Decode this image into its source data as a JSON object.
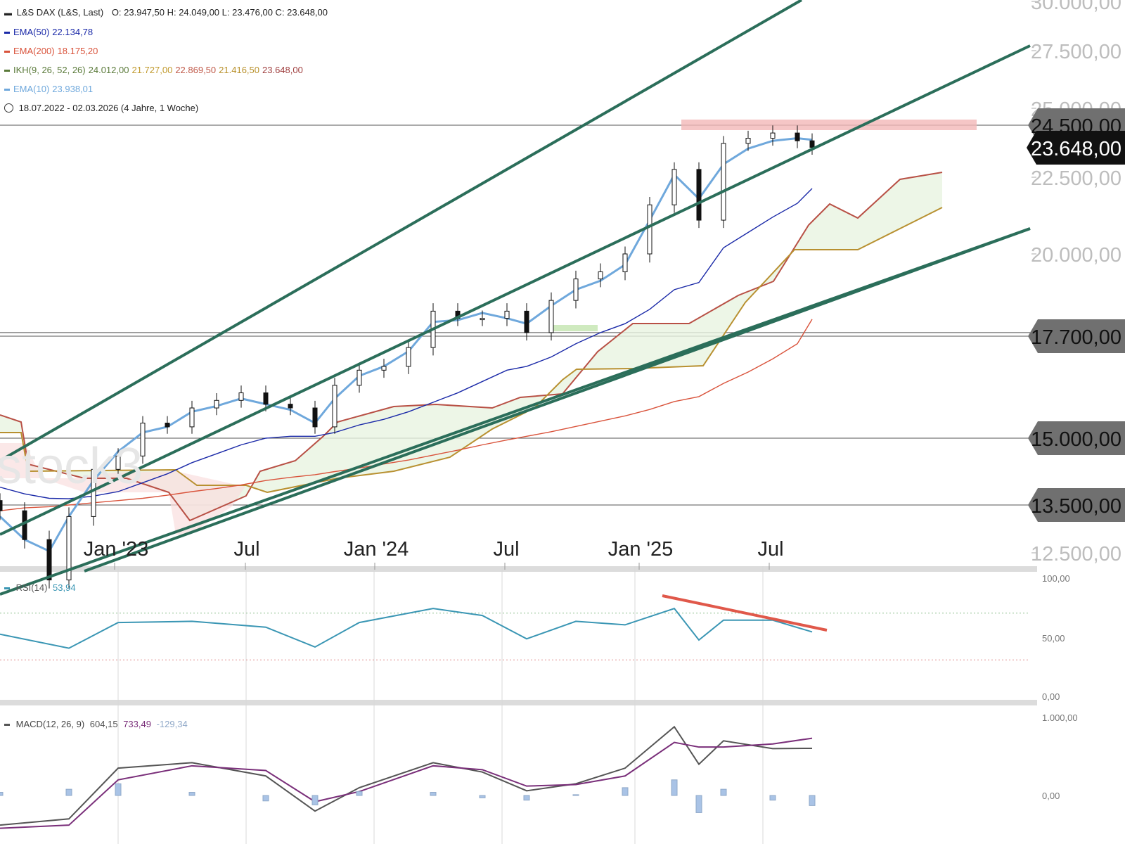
{
  "header": {
    "title": "L&S DAX (L&S, Last)",
    "ohlc": "O: 23.947,50   H: 24.049,00   L: 23.476,00   C: 23.648,00",
    "indicators": [
      {
        "label": "EMA(50)",
        "values": [
          "22.134,78"
        ],
        "color": "#1b2aa8"
      },
      {
        "label": "EMA(200)",
        "values": [
          "18.175,20"
        ],
        "color": "#d9533b"
      },
      {
        "label": "IKH(9, 26, 52, 26)",
        "values": [
          "24.012,00",
          "21.727,00",
          "22.869,50",
          "21.416,50",
          "23.648,00"
        ],
        "value_colors": [
          "#5a7a3a",
          "#c19a2e",
          "#c05a4a",
          "#b8902a",
          "#a04040"
        ],
        "color": "#5a7a3a"
      },
      {
        "label": "EMA(10)",
        "values": [
          "23.938,01"
        ],
        "color": "#6fa8dc"
      }
    ],
    "period": "18.07.2022 - 02.03.2026  (4 Jahre, 1 Woche)"
  },
  "watermark": "stock3",
  "price_labels": [
    {
      "text": "30.000,00",
      "style": "plain"
    },
    {
      "text": "27.500,00",
      "style": "plain"
    },
    {
      "text": "25.000,00",
      "style": "plain"
    },
    {
      "text": "24.500,00",
      "style": "tag"
    },
    {
      "text": "23.648,00",
      "style": "current"
    },
    {
      "text": "22.500,00",
      "style": "plain"
    },
    {
      "text": "20.000,00",
      "style": "plain"
    },
    {
      "text": "17.700,00",
      "style": "tag"
    },
    {
      "text": "15.000,00",
      "style": "tag"
    },
    {
      "text": "13.500,00",
      "style": "tag"
    },
    {
      "text": "12.500,00",
      "style": "plain"
    }
  ],
  "time_labels": [
    "Jan '23",
    "Jul",
    "Jan '24",
    "Jul",
    "Jan '25",
    "Jul"
  ],
  "rsi_panel": {
    "label": "RSI(14)",
    "value": "53,94",
    "ticks": [
      "100,00",
      "50,00",
      "0,00"
    ]
  },
  "macd_panel": {
    "label": "MACD(12, 26, 9)",
    "values": [
      "604,15",
      "733,49",
      "-129,34"
    ],
    "value_colors": [
      "#555555",
      "#7a2f7a",
      "#8fa8c8"
    ],
    "ticks": [
      "1.000,00",
      "0,00"
    ]
  },
  "colors": {
    "ema10": "#6fa8dc",
    "ema50": "#1b2aa8",
    "ema200": "#d9533b",
    "channel": "#2b6e5a",
    "resistance": "#f2b8b8",
    "divergence": "#e0584a"
  },
  "chart_data": [
    {
      "type": "candlestick",
      "title": "L&S DAX (L&S, Last)",
      "x": [
        "2022-07-18",
        "2022-08-22",
        "2022-09-26",
        "2022-10-24",
        "2022-11-28",
        "2023-01-02",
        "2023-02-06",
        "2023-03-13",
        "2023-04-17",
        "2023-05-22",
        "2023-06-26",
        "2023-07-31",
        "2023-09-04",
        "2023-10-09",
        "2023-11-06",
        "2023-12-11",
        "2024-01-15",
        "2024-02-19",
        "2024-03-25",
        "2024-04-29",
        "2024-06-03",
        "2024-07-08",
        "2024-08-05",
        "2024-09-09",
        "2024-10-14",
        "2024-11-18",
        "2024-12-23",
        "2025-01-27",
        "2025-03-03",
        "2025-04-07",
        "2025-05-12",
        "2025-06-16",
        "2025-07-21",
        "2025-08-25",
        "2025-09-15"
      ],
      "close": [
        13400,
        12900,
        12200,
        13300,
        14300,
        14600,
        15400,
        15300,
        15800,
        16000,
        16200,
        15900,
        15800,
        15300,
        16400,
        16800,
        16900,
        17400,
        18400,
        18200,
        18200,
        18400,
        17800,
        18700,
        19300,
        19500,
        20000,
        21600,
        22800,
        21100,
        23800,
        24000,
        24200,
        23900,
        23648
      ],
      "ylim": [
        12500,
        30000
      ],
      "series": [
        {
          "name": "EMA(50)",
          "values": [
            13900,
            13750,
            13650,
            13640,
            13700,
            13800,
            14000,
            14200,
            14450,
            14650,
            14850,
            15000,
            15050,
            15050,
            15150,
            15350,
            15500,
            15700,
            15950,
            16200,
            16500,
            16800,
            16900,
            17150,
            17500,
            17800,
            18050,
            18450,
            19000,
            19200,
            20200,
            20700,
            21200,
            21650,
            22134
          ]
        },
        {
          "name": "EMA(200)",
          "values": [
            13400,
            13450,
            13470,
            13500,
            13550,
            13600,
            13650,
            13720,
            13800,
            13870,
            13950,
            14050,
            14120,
            14180,
            14250,
            14330,
            14420,
            14510,
            14620,
            14730,
            14850,
            14960,
            15050,
            15170,
            15310,
            15450,
            15590,
            15760,
            15970,
            16100,
            16450,
            16750,
            17100,
            17500,
            18175
          ]
        },
        {
          "name": "EMA(10)",
          "values": [
            13300,
            12900,
            12700,
            13300,
            14050,
            14700,
            15150,
            15300,
            15700,
            15850,
            16050,
            15900,
            15750,
            15400,
            16050,
            16650,
            16900,
            17300,
            18100,
            18150,
            18350,
            18200,
            18050,
            18550,
            19000,
            19250,
            19700,
            21100,
            22600,
            21800,
            23000,
            23600,
            23900,
            24000,
            23938
          ]
        }
      ]
    },
    {
      "type": "line",
      "title": "RSI(14)",
      "x": [
        "2022-07-18",
        "2022-10-24",
        "2023-01-02",
        "2023-04-17",
        "2023-07-31",
        "2023-10-09",
        "2023-12-11",
        "2024-03-25",
        "2024-06-03",
        "2024-08-05",
        "2024-10-14",
        "2024-12-23",
        "2025-03-03",
        "2025-04-07",
        "2025-05-12",
        "2025-07-21",
        "2025-09-15"
      ],
      "values": [
        52,
        40,
        62,
        63,
        58,
        41,
        62,
        74,
        68,
        48,
        63,
        60,
        74,
        47,
        64,
        64,
        53.94
      ],
      "ylim": [
        0,
        100
      ]
    },
    {
      "type": "line",
      "title": "MACD(12, 26, 9)",
      "x": [
        "2022-07-18",
        "2022-10-24",
        "2023-01-02",
        "2023-04-17",
        "2023-07-31",
        "2023-10-09",
        "2023-12-11",
        "2024-03-25",
        "2024-06-03",
        "2024-08-05",
        "2024-10-14",
        "2024-12-23",
        "2025-03-03",
        "2025-04-07",
        "2025-05-12",
        "2025-07-21",
        "2025-09-15"
      ],
      "series": [
        {
          "name": "MACD",
          "values": [
            -380,
            -300,
            350,
            420,
            250,
            -200,
            100,
            420,
            300,
            60,
            150,
            350,
            880,
            400,
            700,
            600,
            604.15
          ]
        },
        {
          "name": "Signal",
          "values": [
            -420,
            -380,
            200,
            380,
            320,
            -80,
            50,
            380,
            330,
            120,
            140,
            250,
            680,
            620,
            620,
            660,
            733.49
          ]
        }
      ],
      "ylim": [
        -500,
        1100
      ]
    }
  ]
}
